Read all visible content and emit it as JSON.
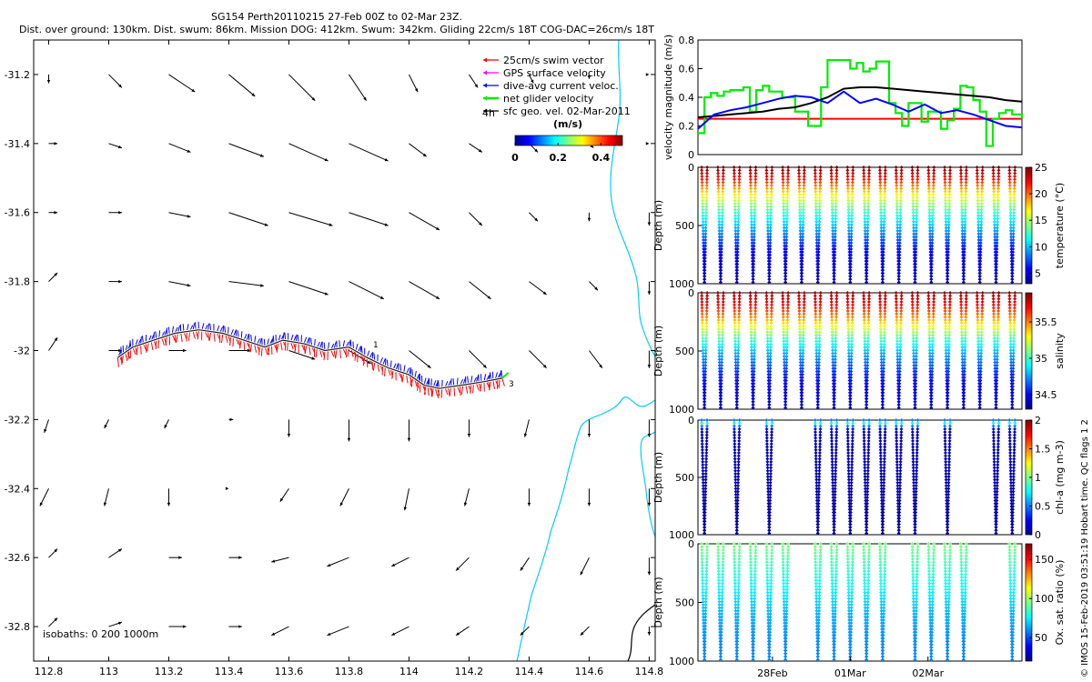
{
  "header": {
    "title_line1": "SG154 Perth20110215 27-Feb 00Z to 02-Mar 23Z.",
    "title_line2": "Dist. over ground: 130km. Dist. swum: 86km. Mission DOG: 412km. Swum: 342km. Gliding 22cm/s 18T COG-DAC=26cm/s 18T"
  },
  "colors": {
    "swim": "#ff0000",
    "gps": "#ff00ff",
    "dac": "#0000ff",
    "net": "#00ee00",
    "geo": "#000000",
    "coast": "#00d0f0"
  },
  "chart_data": [
    {
      "type": "map",
      "xlim": [
        112.75,
        114.82
      ],
      "ylim": [
        -32.9,
        -31.1
      ],
      "xticks": [
        "112.8",
        "113",
        "113.2",
        "113.4",
        "113.6",
        "113.8",
        "114",
        "114.2",
        "114.4",
        "114.6",
        "114.8"
      ],
      "yticks": [
        "-31.2",
        "-31.4",
        "-31.6",
        "-31.8",
        "-32",
        "-32.2",
        "-32.4",
        "-32.6",
        "-32.8"
      ],
      "legend": {
        "items": [
          {
            "label": "25cm/s swim vector",
            "color": "#ff0000"
          },
          {
            "label": "GPS surface velocity",
            "color": "#ff00ff"
          },
          {
            "label": "dive-avg current veloc.",
            "color": "#0000ff"
          },
          {
            "label": "net glider velocity",
            "color": "#00ee00"
          },
          {
            "label": "sfc geo. vel. 02-Mar-2011",
            "color": "#000000"
          }
        ],
        "interval_label": "4h",
        "colorbar_title": "(m/s)",
        "colorbar_ticks": [
          "0",
          "0.2",
          "0.4"
        ],
        "colorbar_range": [
          0,
          0.5
        ]
      },
      "isobaths_label": "isobaths: 0   200   1000m",
      "track_labels": [
        "1",
        "3"
      ],
      "track": [
        [
          113.03,
          -32.02
        ],
        [
          113.08,
          -31.99
        ],
        [
          113.15,
          -31.97
        ],
        [
          113.22,
          -31.95
        ],
        [
          113.3,
          -31.94
        ],
        [
          113.38,
          -31.95
        ],
        [
          113.45,
          -31.97
        ],
        [
          113.52,
          -31.99
        ],
        [
          113.58,
          -31.97
        ],
        [
          113.65,
          -31.98
        ],
        [
          113.72,
          -32.0
        ],
        [
          113.8,
          -31.99
        ],
        [
          113.86,
          -32.02
        ],
        [
          113.93,
          -32.05
        ],
        [
          114.0,
          -32.07
        ],
        [
          114.05,
          -32.1
        ],
        [
          114.1,
          -32.11
        ],
        [
          114.18,
          -32.1
        ],
        [
          114.25,
          -32.09
        ],
        [
          114.31,
          -32.08
        ]
      ],
      "geo_vectors": {
        "lons": [
          112.8,
          113.0,
          113.2,
          113.4,
          113.6,
          113.8,
          114.0,
          114.2,
          114.4,
          114.6,
          114.8
        ],
        "lats": [
          -31.2,
          -31.4,
          -31.6,
          -31.8,
          -32.0,
          -32.2,
          -32.4,
          -32.6,
          -32.8
        ],
        "u": [
          [
            0.0,
            0.03,
            0.06,
            0.06,
            0.06,
            0.04,
            0.02,
            0.02,
            0.01,
            0.0,
            0.0
          ],
          [
            0.02,
            0.03,
            0.05,
            0.08,
            0.09,
            0.09,
            0.04,
            0.03,
            0.02,
            0.01,
            0.0
          ],
          [
            0.02,
            0.03,
            0.05,
            0.09,
            0.1,
            0.09,
            0.07,
            0.03,
            0.02,
            0.0,
            0.0
          ],
          [
            0.02,
            0.03,
            0.05,
            0.08,
            0.09,
            0.08,
            0.07,
            0.05,
            0.04,
            0.02,
            0.0
          ],
          [
            0.02,
            0.03,
            0.04,
            0.05,
            0.06,
            0.05,
            0.05,
            0.04,
            0.04,
            0.03,
            0.0
          ],
          [
            -0.01,
            -0.01,
            -0.01,
            0.01,
            0.0,
            0.0,
            0.0,
            0.0,
            -0.01,
            0.0,
            0.0
          ],
          [
            -0.02,
            -0.01,
            0.0,
            0.0,
            -0.02,
            -0.02,
            -0.01,
            -0.01,
            0.0,
            0.0,
            0.0
          ],
          [
            0.02,
            0.03,
            0.03,
            0.03,
            -0.04,
            -0.05,
            -0.04,
            -0.03,
            -0.02,
            -0.02,
            0.0
          ],
          [
            0.02,
            0.03,
            0.04,
            0.03,
            -0.04,
            -0.05,
            -0.04,
            -0.03,
            -0.02,
            -0.02,
            0.0
          ]
        ],
        "v": [
          [
            -0.02,
            -0.03,
            -0.04,
            -0.05,
            -0.06,
            -0.06,
            -0.04,
            -0.03,
            -0.02,
            -0.01,
            0.0
          ],
          [
            0.0,
            -0.01,
            -0.02,
            -0.03,
            -0.04,
            -0.04,
            -0.03,
            -0.02,
            -0.02,
            -0.01,
            0.0
          ],
          [
            0.0,
            0.0,
            -0.01,
            -0.03,
            -0.03,
            -0.03,
            -0.04,
            -0.03,
            -0.02,
            -0.02,
            -0.03
          ],
          [
            0.02,
            0.0,
            -0.01,
            -0.01,
            -0.03,
            -0.04,
            -0.04,
            -0.04,
            -0.03,
            -0.02,
            -0.03
          ],
          [
            0.03,
            0.0,
            0.0,
            0.0,
            -0.02,
            -0.03,
            -0.04,
            -0.04,
            -0.04,
            -0.04,
            -0.04
          ],
          [
            -0.03,
            -0.02,
            -0.02,
            0.0,
            -0.04,
            -0.05,
            -0.05,
            -0.04,
            -0.04,
            -0.04,
            -0.04
          ],
          [
            -0.04,
            -0.04,
            -0.04,
            0.0,
            -0.03,
            -0.04,
            -0.05,
            -0.04,
            -0.04,
            -0.04,
            -0.04
          ],
          [
            0.02,
            0.02,
            0.0,
            0.0,
            -0.01,
            -0.02,
            -0.02,
            -0.03,
            -0.03,
            -0.04,
            -0.04
          ],
          [
            0.02,
            0.01,
            0.0,
            0.0,
            -0.02,
            -0.02,
            -0.02,
            -0.02,
            -0.02,
            -0.02,
            -0.02
          ]
        ]
      }
    },
    {
      "type": "line",
      "ylabel": "velocity magnitude (m/s)",
      "ylim": [
        0,
        0.8
      ],
      "yticks": [
        "0",
        "0.2",
        "0.4",
        "0.6",
        "0.8"
      ],
      "xlim": [
        0,
        100
      ],
      "series": [
        {
          "color": "#ff0000",
          "x": [
            0,
            100
          ],
          "y": [
            0.25,
            0.25
          ]
        },
        {
          "color": "#00ee00",
          "step": true,
          "x": [
            0,
            2,
            4,
            6,
            8,
            10,
            14,
            16,
            18,
            20,
            22,
            26,
            30,
            34,
            38,
            40,
            43,
            47,
            49,
            51,
            53,
            55,
            59,
            61,
            63,
            65,
            69,
            71,
            75,
            77,
            79,
            81,
            83,
            85,
            87,
            89,
            91,
            93,
            95,
            97,
            100
          ],
          "y": [
            0.15,
            0.4,
            0.43,
            0.41,
            0.44,
            0.45,
            0.47,
            0.3,
            0.45,
            0.48,
            0.44,
            0.4,
            0.3,
            0.2,
            0.47,
            0.66,
            0.66,
            0.6,
            0.64,
            0.58,
            0.6,
            0.65,
            0.36,
            0.29,
            0.2,
            0.36,
            0.23,
            0.3,
            0.18,
            0.24,
            0.32,
            0.48,
            0.47,
            0.38,
            0.3,
            0.06,
            0.25,
            0.29,
            0.31,
            0.28,
            0.25
          ]
        },
        {
          "color": "#000000",
          "x": [
            0,
            5,
            10,
            15,
            20,
            25,
            30,
            35,
            40,
            45,
            50,
            55,
            60,
            65,
            70,
            75,
            80,
            85,
            90,
            95,
            100
          ],
          "y": [
            0.26,
            0.27,
            0.28,
            0.29,
            0.3,
            0.32,
            0.33,
            0.36,
            0.4,
            0.46,
            0.47,
            0.47,
            0.46,
            0.45,
            0.44,
            0.43,
            0.42,
            0.41,
            0.4,
            0.38,
            0.37
          ]
        },
        {
          "color": "#0000ff",
          "x": [
            0,
            5,
            10,
            15,
            20,
            25,
            30,
            35,
            40,
            45,
            50,
            55,
            60,
            65,
            70,
            75,
            80,
            85,
            90,
            95,
            100
          ],
          "y": [
            0.18,
            0.28,
            0.31,
            0.33,
            0.36,
            0.39,
            0.41,
            0.4,
            0.36,
            0.44,
            0.36,
            0.39,
            0.35,
            0.3,
            0.35,
            0.29,
            0.31,
            0.28,
            0.24,
            0.2,
            0.19
          ]
        }
      ]
    },
    {
      "type": "scatter",
      "ylabel": "Depth (m)",
      "colorbar_label": "temperature (°C)",
      "ylim": [
        0,
        1000
      ],
      "yticks": [
        "0",
        "500",
        "1000"
      ],
      "clim": [
        3,
        25
      ],
      "cticks": [
        "5",
        "10",
        "15",
        "20",
        "25"
      ],
      "profile": {
        "depth": [
          0,
          100,
          200,
          300,
          400,
          500,
          700,
          1000
        ],
        "value": [
          25,
          22,
          18,
          15,
          12,
          10,
          6,
          4
        ]
      },
      "dives": [
        2,
        7,
        12,
        17,
        22,
        27,
        32,
        37,
        42,
        47,
        52,
        57,
        62,
        67,
        72,
        77,
        82,
        87,
        92,
        97
      ],
      "max_depth": 1000,
      "point_color": ""
    },
    {
      "type": "scatter",
      "ylabel": "Depth (m)",
      "colorbar_label": "salinity",
      "ylim": [
        0,
        1000
      ],
      "yticks": [
        "0",
        "500",
        "1000"
      ],
      "clim": [
        34.3,
        35.9
      ],
      "cticks": [
        "34.5",
        "35",
        "35.5"
      ],
      "profile": {
        "depth": [
          0,
          100,
          200,
          300,
          400,
          500,
          700,
          1000
        ],
        "value": [
          35.85,
          35.7,
          35.5,
          35.25,
          35.0,
          34.8,
          34.55,
          34.4
        ]
      },
      "dives": [
        2,
        7,
        12,
        17,
        22,
        27,
        32,
        37,
        42,
        47,
        52,
        57,
        62,
        67,
        72,
        77,
        82,
        87,
        92,
        97
      ],
      "max_depth": 1000,
      "point_color": ""
    },
    {
      "type": "scatter",
      "ylabel": "Depth (m)",
      "colorbar_label": "chl-a (mg m-3)",
      "ylim": [
        0,
        1000
      ],
      "yticks": [
        "0",
        "500",
        "1000"
      ],
      "clim": [
        0,
        2
      ],
      "cticks": [
        "0",
        "0.5",
        "1",
        "1.5",
        "2"
      ],
      "profile": {
        "depth": [
          0,
          30,
          60,
          100,
          1000
        ],
        "value": [
          0.5,
          0.8,
          0.4,
          0.1,
          0.05
        ]
      },
      "dives": [
        2,
        12,
        22,
        37,
        42,
        47,
        52,
        57,
        62,
        67,
        77,
        92,
        97
      ],
      "max_depth": 1000,
      "point_color": ""
    },
    {
      "type": "scatter",
      "ylabel": "Depth (m)",
      "colorbar_label": "Ox. sat. ratio (%)",
      "ylim": [
        0,
        1000
      ],
      "yticks": [
        "0",
        "500",
        "1000"
      ],
      "clim": [
        20,
        170
      ],
      "cticks": [
        "50",
        "100",
        "150"
      ],
      "profile": {
        "depth": [
          0,
          100,
          200,
          400,
          600,
          800,
          1000
        ],
        "value": [
          95,
          90,
          85,
          75,
          65,
          60,
          58
        ]
      },
      "dives": [
        2,
        7,
        12,
        17,
        22,
        27,
        37,
        42,
        47,
        52,
        57,
        67,
        72,
        77,
        82,
        97
      ],
      "max_depth": 1000,
      "point_color": ""
    }
  ],
  "time_axis": {
    "ticks": [
      "28Feb",
      "01Mar",
      "02Mar"
    ],
    "positions": [
      23,
      47,
      71
    ]
  },
  "credit": "© IMOS 15-Feb-2019 03:51:19 Hobart time. QC flags 1  2"
}
